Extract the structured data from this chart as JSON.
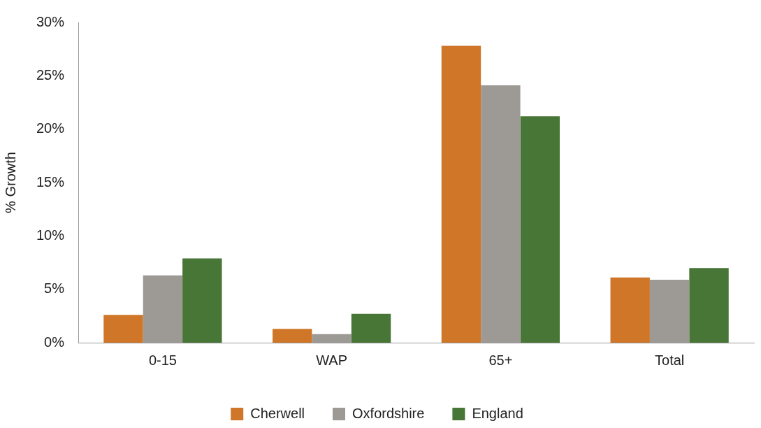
{
  "chart_data": {
    "type": "bar",
    "ylabel": "% Growth",
    "categories": [
      "0-15",
      "WAP",
      "65+",
      "Total"
    ],
    "series": [
      {
        "name": "Cherwell",
        "color": "#cf7629",
        "values": [
          2.6,
          1.3,
          27.8,
          6.1
        ]
      },
      {
        "name": "Oxfordshire",
        "color": "#9d9a96",
        "values": [
          6.3,
          0.8,
          24.1,
          5.9
        ]
      },
      {
        "name": "England",
        "color": "#477636",
        "values": [
          7.9,
          2.7,
          21.2,
          7.0
        ]
      }
    ],
    "ylim": [
      0,
      30
    ],
    "yticks": [
      {
        "value": 0,
        "label": "0%"
      },
      {
        "value": 5,
        "label": "5%"
      },
      {
        "value": 10,
        "label": "10%"
      },
      {
        "value": 15,
        "label": "15%"
      },
      {
        "value": 20,
        "label": "20%"
      },
      {
        "value": 25,
        "label": "25%"
      },
      {
        "value": 30,
        "label": "30%"
      }
    ],
    "grid": false,
    "legend": "bottom"
  }
}
